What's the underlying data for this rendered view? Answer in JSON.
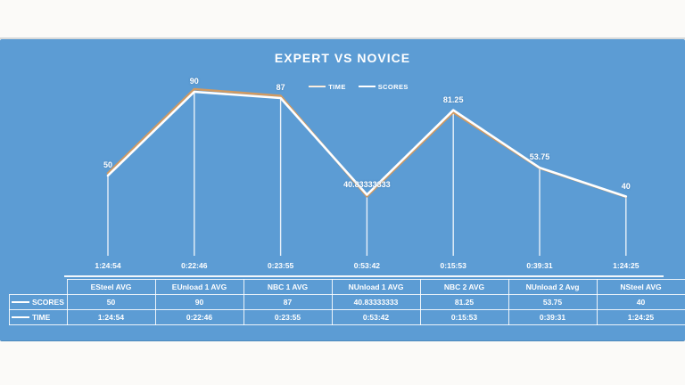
{
  "page": {
    "background": "#fbfaf8",
    "divider_color": "#d7d9da"
  },
  "slide": {
    "background": "#5C9CD4"
  },
  "chart": {
    "title": "EXPERT VS NOVICE",
    "legend": [
      {
        "label": "TIME"
      },
      {
        "label": "SCORES"
      }
    ]
  },
  "chart_data": {
    "type": "line",
    "title": "EXPERT VS NOVICE",
    "legend_position": "top",
    "gridlines": false,
    "value_axis": {
      "visible": false,
      "implied_range": [
        0,
        90
      ]
    },
    "category_axis": {
      "line_visible": true,
      "drop_lines": true
    },
    "categories": [
      "ESteel AVG",
      "EUnload 1 AVG",
      "NBC 1 AVG",
      "NUnload 1 AVG",
      "NBC 2 AVG",
      "NUnload 2 Avg",
      "NSteel AVG"
    ],
    "series": [
      {
        "name": "SCORES",
        "color": "#ffffff",
        "values": [
          50,
          90,
          87,
          40.83333333,
          81.25,
          53.75,
          40
        ],
        "data_labels": [
          "50",
          "90",
          "87",
          "40.83333333",
          "81.25",
          "53.75",
          "40"
        ]
      },
      {
        "name": "TIME",
        "color": "#D09A62",
        "values": [
          "1:24:54",
          "0:22:46",
          "0:23:55",
          "0:53:42",
          "0:15:53",
          "0:39:31",
          "1:24:25"
        ]
      }
    ],
    "data_table": {
      "corner_cell": "",
      "column_headers": [
        "ESteel AVG",
        "EUnload 1 AVG",
        "NBC 1 AVG",
        "NUnload 1 AVG",
        "NBC 2 AVG",
        "NUnload 2 Avg",
        "NSteel AVG"
      ],
      "row_headers": [
        "SCORES",
        "TIME"
      ],
      "rows": [
        [
          "50",
          "90",
          "87",
          "40.83333333",
          "81.25",
          "53.75",
          "40"
        ],
        [
          "1:24:54",
          "0:22:46",
          "0:23:55",
          "0:53:42",
          "0:15:53",
          "0:39:31",
          "1:24:25"
        ]
      ]
    }
  }
}
